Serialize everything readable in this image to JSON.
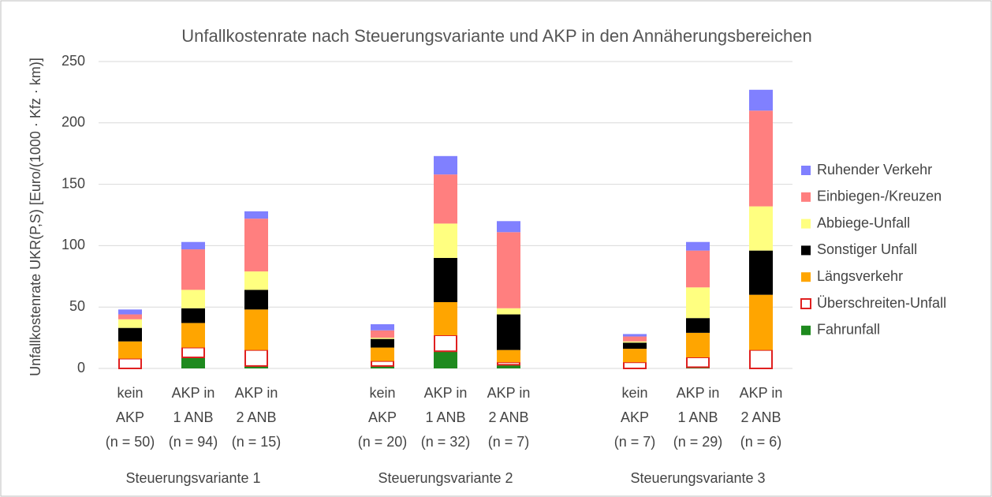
{
  "chart_data": {
    "type": "stacked_bar",
    "title": "Unfallkostenrate nach Steuerungsvariante  und AKP in den Annäherungsbereichen",
    "y_label": "Unfallkostenrate UKR(P,S) [Euro/(1000 · Kfz · km)]",
    "categories": [
      "kein\nAKP\n(n = 50)",
      "AKP in\n1 ANB\n(n = 94)",
      "AKP in\n2 ANB\n(n = 15)",
      "kein\nAKP\n(n = 20)",
      "AKP in\n1 ANB\n(n = 32)",
      "AKP in\n2 ANB\n(n = 7)",
      "kein\nAKP\n(n = 7)",
      "AKP in\n1 ANB\n(n = 29)",
      "AKP in\n2 ANB\n(n = 6)"
    ],
    "groups": [
      "Steuerungsvariante 1",
      "Steuerungsvariante 2",
      "Steuerungsvariante 3"
    ],
    "series": [
      {
        "name": "Fahrunfall",
        "color": "#1e8a1e",
        "values": [
          0,
          9,
          2,
          2,
          14,
          3,
          0,
          1,
          0
        ]
      },
      {
        "name": "Überschreiten-Unfall",
        "color": "#e02020",
        "outline": true,
        "values": [
          8,
          8,
          13,
          4,
          13,
          2,
          5,
          8,
          15
        ]
      },
      {
        "name": "Längsverkehr",
        "color": "#ffa500",
        "values": [
          14,
          20,
          33,
          11,
          27,
          10,
          11,
          20,
          45
        ]
      },
      {
        "name": "Sonstiger Unfall",
        "color": "#000000",
        "values": [
          11,
          12,
          16,
          7,
          36,
          29,
          5,
          12,
          36
        ]
      },
      {
        "name": "Abbiege-Unfall",
        "color": "#ffff80",
        "values": [
          7,
          15,
          15,
          1,
          28,
          5,
          1,
          25,
          36
        ]
      },
      {
        "name": "Einbiegen-/Kreuzen",
        "color": "#ff7f7f",
        "values": [
          4,
          33,
          43,
          6,
          40,
          62,
          4,
          30,
          78
        ]
      },
      {
        "name": "Ruhender Verkehr",
        "color": "#8080ff",
        "values": [
          4,
          6,
          6,
          5,
          15,
          9,
          2,
          7,
          17
        ]
      }
    ],
    "ylim": [
      0,
      250
    ],
    "yticks": [
      0,
      50,
      100,
      150,
      200,
      250
    ],
    "grid": true
  }
}
